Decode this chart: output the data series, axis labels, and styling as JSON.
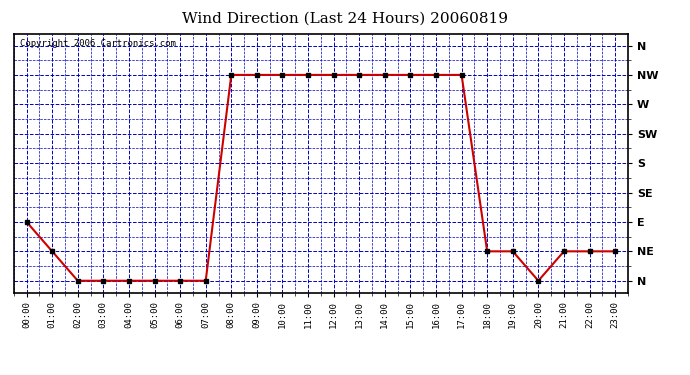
{
  "title": "Wind Direction (Last 24 Hours) 20060819",
  "copyright_text": "Copyright 2006 Cartronics.com",
  "x_labels": [
    "00:00",
    "01:00",
    "02:00",
    "03:00",
    "04:00",
    "05:00",
    "06:00",
    "07:00",
    "08:00",
    "09:00",
    "10:00",
    "11:00",
    "12:00",
    "13:00",
    "14:00",
    "15:00",
    "16:00",
    "17:00",
    "18:00",
    "19:00",
    "20:00",
    "21:00",
    "22:00",
    "23:00"
  ],
  "y_labels": [
    "N",
    "NE",
    "E",
    "SE",
    "S",
    "SW",
    "W",
    "NW",
    "N"
  ],
  "wind_data": [
    [
      0,
      2
    ],
    [
      1,
      1
    ],
    [
      2,
      0
    ],
    [
      3,
      0
    ],
    [
      4,
      0
    ],
    [
      5,
      0
    ],
    [
      6,
      0
    ],
    [
      7,
      0
    ],
    [
      8,
      7
    ],
    [
      9,
      7
    ],
    [
      10,
      7
    ],
    [
      11,
      7
    ],
    [
      12,
      7
    ],
    [
      13,
      7
    ],
    [
      14,
      7
    ],
    [
      15,
      7
    ],
    [
      16,
      7
    ],
    [
      17,
      7
    ],
    [
      18,
      1
    ],
    [
      19,
      1
    ],
    [
      20,
      0
    ],
    [
      21,
      1
    ],
    [
      22,
      1
    ],
    [
      23,
      1
    ]
  ],
  "line_color": "#cc0000",
  "grid_color": "#0000bb",
  "bg_color": "#ffffff",
  "title_fontsize": 11,
  "ylabel_fontsize": 8,
  "xlabel_fontsize": 6.5,
  "copyright_fontsize": 6.5
}
